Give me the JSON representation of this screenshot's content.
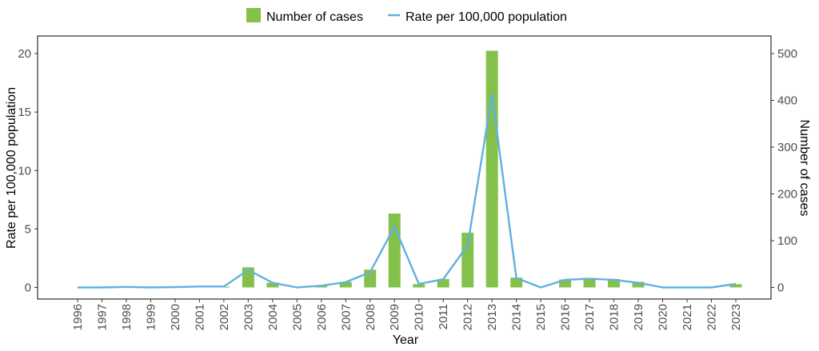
{
  "chart_data": {
    "type": "bar+line",
    "title": "",
    "xlabel": "Year",
    "ylabel_left": "Rate per 100,000 population",
    "ylabel_right": "Number of cases",
    "ylim_left": [
      0,
      21.3
    ],
    "ylim_right": [
      0,
      532.5
    ],
    "yticks_left": [
      0,
      5,
      10,
      15,
      20
    ],
    "yticks_right": [
      0,
      100,
      200,
      300,
      400,
      500
    ],
    "grid": false,
    "legend_position": "top",
    "categories": [
      "1996",
      "1997",
      "1998",
      "1999",
      "2000",
      "2001",
      "2002",
      "2003",
      "2004",
      "2005",
      "2006",
      "2007",
      "2008",
      "2009",
      "2010",
      "2011",
      "2012",
      "2013",
      "2014",
      "2015",
      "2016",
      "2017",
      "2018",
      "2019",
      "2020",
      "2021",
      "2022",
      "2023"
    ],
    "series": [
      {
        "name": "Number of cases",
        "type": "bar",
        "axis": "right",
        "color": "#84c14b",
        "values": [
          0,
          0,
          0,
          0,
          0,
          1,
          1,
          43,
          10,
          0,
          3,
          12,
          38,
          158,
          7,
          18,
          117,
          506,
          21,
          0,
          17,
          20,
          18,
          12,
          0,
          0,
          0,
          7
        ]
      },
      {
        "name": "Rate per 100,000 population",
        "type": "line",
        "axis": "left",
        "color": "#62b0e0",
        "values": [
          0,
          0,
          0.05,
          0,
          0.03,
          0.08,
          0.08,
          1.5,
          0.4,
          0,
          0.15,
          0.45,
          1.3,
          5.2,
          0.3,
          0.7,
          3.6,
          16.5,
          0.8,
          0,
          0.65,
          0.75,
          0.65,
          0.4,
          0,
          0,
          0,
          0.3
        ]
      }
    ]
  }
}
